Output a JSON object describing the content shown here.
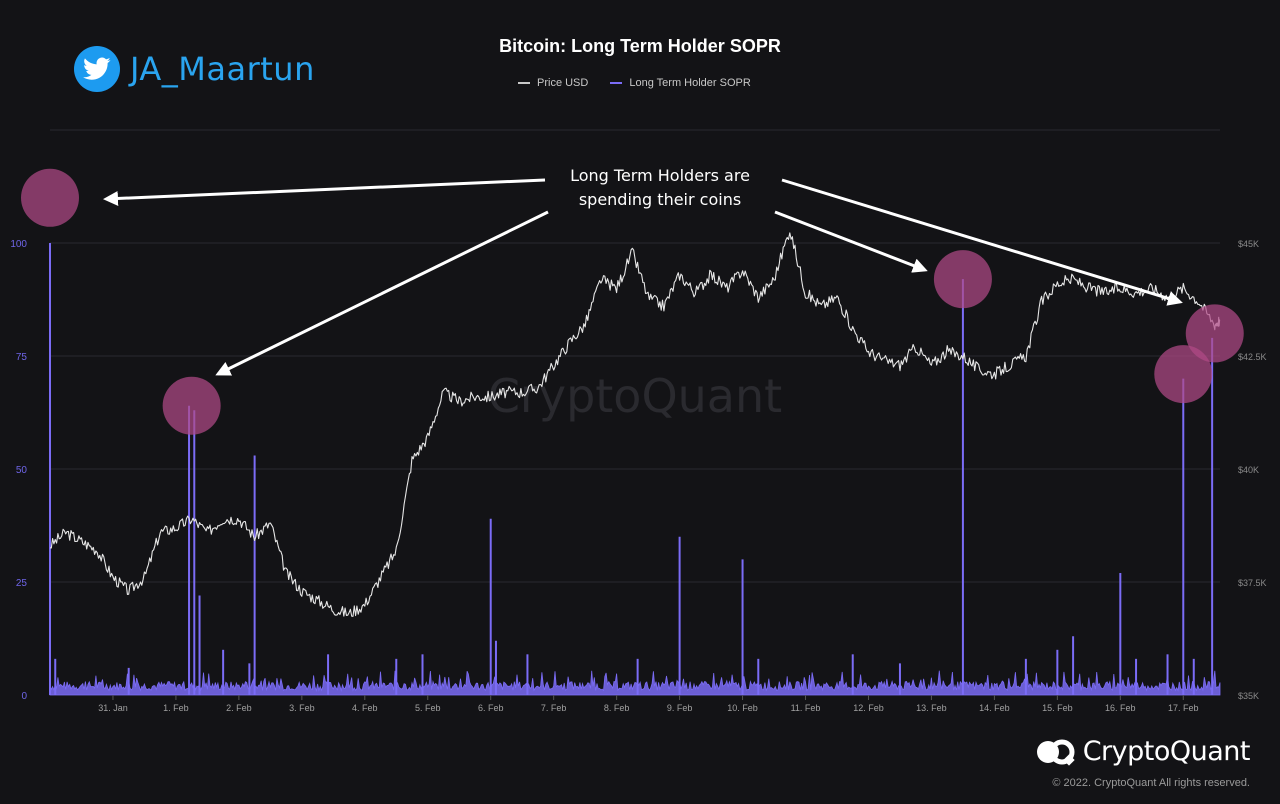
{
  "header": {
    "twitter_handle": "JA_Maartun",
    "title": "Bitcoin: Long Term Holder SOPR"
  },
  "legend": [
    {
      "label": "Price USD",
      "color": "#c8c8c8"
    },
    {
      "label": "Long Term Holder SOPR",
      "color": "#7b6cf6"
    }
  ],
  "annotation": {
    "line1": "Long Term Holders are",
    "line2": "spending their coins"
  },
  "watermark": "CryptoQuant",
  "brand": {
    "name": "CryptoQuant",
    "copyright": "© 2022. CryptoQuant All rights reserved."
  },
  "colors": {
    "price": "#e6e6e6",
    "sopr": "#7b6cf6",
    "highlight": "#b04a86",
    "grid": "#2a2a30",
    "left_axis": "#6f65e8",
    "right_axis": "#8a8a8a"
  },
  "chart_data": {
    "type": "line",
    "title": "Bitcoin: Long Term Holder SOPR",
    "x_ticks": [
      "31. Jan",
      "1. Feb",
      "2. Feb",
      "3. Feb",
      "4. Feb",
      "5. Feb",
      "6. Feb",
      "7. Feb",
      "8. Feb",
      "9. Feb",
      "10. Feb",
      "11. Feb",
      "12. Feb",
      "13. Feb",
      "14. Feb",
      "15. Feb",
      "16. Feb",
      "17. Feb"
    ],
    "xlim": [
      "30. Jan 00:00",
      "17. Feb 14:00"
    ],
    "y_left": {
      "ticks": [
        0,
        25,
        50,
        75,
        100
      ],
      "ylim": [
        0,
        100
      ]
    },
    "y_right": {
      "ticks": [
        "$35K",
        "$37.5K",
        "$40K",
        "$42.5K",
        "$45K"
      ],
      "ylim": [
        35000,
        45000
      ]
    },
    "grid": true,
    "legend_position": "top-center",
    "series": [
      {
        "name": "Price USD",
        "axis": "right",
        "points": [
          [
            "30. Jan 00:00",
            38300
          ],
          [
            "30. Jan 06:00",
            38600
          ],
          [
            "30. Jan 12:00",
            38400
          ],
          [
            "30. Jan 18:00",
            38200
          ],
          [
            "31. Jan 00:00",
            37600
          ],
          [
            "31. Jan 06:00",
            37300
          ],
          [
            "31. Jan 12:00",
            37600
          ],
          [
            "31. Jan 18:00",
            38600
          ],
          [
            "1. Feb 00:00",
            38700
          ],
          [
            "1. Feb 06:00",
            38900
          ],
          [
            "1. Feb 12:00",
            38600
          ],
          [
            "1. Feb 18:00",
            38900
          ],
          [
            "2. Feb 00:00",
            38900
          ],
          [
            "2. Feb 06:00",
            38500
          ],
          [
            "2. Feb 12:00",
            38800
          ],
          [
            "2. Feb 18:00",
            37700
          ],
          [
            "3. Feb 00:00",
            37300
          ],
          [
            "3. Feb 06:00",
            37100
          ],
          [
            "3. Feb 12:00",
            36900
          ],
          [
            "3. Feb 18:00",
            36800
          ],
          [
            "4. Feb 00:00",
            37000
          ],
          [
            "4. Feb 06:00",
            37600
          ],
          [
            "4. Feb 12:00",
            38200
          ],
          [
            "4. Feb 18:00",
            40200
          ],
          [
            "5. Feb 00:00",
            40700
          ],
          [
            "5. Feb 06:00",
            41700
          ],
          [
            "5. Feb 12:00",
            41500
          ],
          [
            "5. Feb 18:00",
            41600
          ],
          [
            "6. Feb 00:00",
            41600
          ],
          [
            "6. Feb 06:00",
            41700
          ],
          [
            "6. Feb 12:00",
            41700
          ],
          [
            "6. Feb 18:00",
            41800
          ],
          [
            "7. Feb 00:00",
            42300
          ],
          [
            "7. Feb 06:00",
            42800
          ],
          [
            "7. Feb 12:00",
            43200
          ],
          [
            "7. Feb 18:00",
            44200
          ],
          [
            "8. Feb 00:00",
            44000
          ],
          [
            "8. Feb 06:00",
            44800
          ],
          [
            "8. Feb 12:00",
            43800
          ],
          [
            "8. Feb 18:00",
            43600
          ],
          [
            "9. Feb 00:00",
            44300
          ],
          [
            "9. Feb 06:00",
            43900
          ],
          [
            "9. Feb 12:00",
            44300
          ],
          [
            "9. Feb 18:00",
            44000
          ],
          [
            "10. Feb 00:00",
            44400
          ],
          [
            "10. Feb 06:00",
            43800
          ],
          [
            "10. Feb 12:00",
            44200
          ],
          [
            "10. Feb 18:00",
            45300
          ],
          [
            "11. Feb 00:00",
            43900
          ],
          [
            "11. Feb 06:00",
            43600
          ],
          [
            "11. Feb 12:00",
            43800
          ],
          [
            "11. Feb 18:00",
            43100
          ],
          [
            "12. Feb 00:00",
            42600
          ],
          [
            "12. Feb 06:00",
            42400
          ],
          [
            "12. Feb 12:00",
            42300
          ],
          [
            "12. Feb 18:00",
            42700
          ],
          [
            "13. Feb 00:00",
            42300
          ],
          [
            "13. Feb 06:00",
            42600
          ],
          [
            "13. Feb 12:00",
            42500
          ],
          [
            "13. Feb 18:00",
            42200
          ],
          [
            "14. Feb 00:00",
            42100
          ],
          [
            "14. Feb 06:00",
            42300
          ],
          [
            "14. Feb 12:00",
            42500
          ],
          [
            "14. Feb 18:00",
            43700
          ],
          [
            "15. Feb 00:00",
            44100
          ],
          [
            "15. Feb 06:00",
            44200
          ],
          [
            "15. Feb 12:00",
            44000
          ],
          [
            "15. Feb 18:00",
            43900
          ],
          [
            "16. Feb 00:00",
            44000
          ],
          [
            "16. Feb 06:00",
            43900
          ],
          [
            "16. Feb 12:00",
            44000
          ],
          [
            "16. Feb 18:00",
            43800
          ],
          [
            "17. Feb 00:00",
            44000
          ],
          [
            "17. Feb 06:00",
            43700
          ],
          [
            "17. Feb 12:00",
            43200
          ],
          [
            "17. Feb 14:00",
            43300
          ]
        ]
      },
      {
        "name": "Long Term Holder SOPR",
        "axis": "left",
        "baseline": [
          1,
          3
        ],
        "spikes": [
          [
            "30. Jan 00:00",
            100
          ],
          [
            "30. Jan 02:00",
            8
          ],
          [
            "31. Jan 06:00",
            6
          ],
          [
            "1. Feb 05:00",
            64
          ],
          [
            "1. Feb 07:00",
            63
          ],
          [
            "1. Feb 09:00",
            22
          ],
          [
            "1. Feb 18:00",
            10
          ],
          [
            "2. Feb 04:00",
            7
          ],
          [
            "2. Feb 06:00",
            53
          ],
          [
            "3. Feb 10:00",
            9
          ],
          [
            "4. Feb 12:00",
            8
          ],
          [
            "4. Feb 22:00",
            9
          ],
          [
            "6. Feb 00:00",
            39
          ],
          [
            "6. Feb 02:00",
            12
          ],
          [
            "6. Feb 14:00",
            9
          ],
          [
            "8. Feb 08:00",
            8
          ],
          [
            "9. Feb 00:00",
            35
          ],
          [
            "10. Feb 00:00",
            30
          ],
          [
            "10. Feb 06:00",
            8
          ],
          [
            "11. Feb 18:00",
            9
          ],
          [
            "12. Feb 12:00",
            7
          ],
          [
            "13. Feb 12:00",
            92
          ],
          [
            "14. Feb 12:00",
            8
          ],
          [
            "15. Feb 06:00",
            13
          ],
          [
            "15. Feb 00:00",
            10
          ],
          [
            "16. Feb 00:00",
            27
          ],
          [
            "16. Feb 06:00",
            8
          ],
          [
            "16. Feb 18:00",
            9
          ],
          [
            "17. Feb 00:00",
            70
          ],
          [
            "17. Feb 04:00",
            8
          ],
          [
            "17. Feb 11:00",
            79
          ]
        ]
      }
    ],
    "highlights": [
      [
        "30. Jan 00:00",
        110
      ],
      [
        "1. Feb 06:00",
        64
      ],
      [
        "13. Feb 12:00",
        92
      ],
      [
        "17. Feb 00:00",
        71
      ],
      [
        "17. Feb 12:00",
        80
      ]
    ]
  }
}
